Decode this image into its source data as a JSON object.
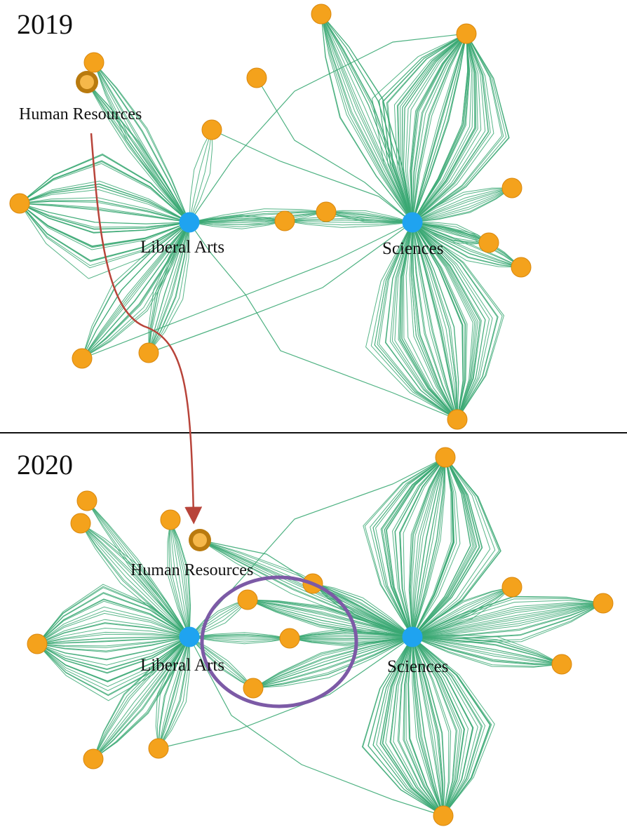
{
  "colors": {
    "edge": "#3aa873",
    "hub": "#1fa3f0",
    "node": "#f4a21c",
    "node_stroke": "#d9880e",
    "highlight_outer": "#b97a0e",
    "highlight_inner": "#f6b84a",
    "arrow": "#b8443a",
    "ellipse": "#7c5aa6",
    "divider": "#111111"
  },
  "panel_2019": {
    "year": "2019",
    "hub_left_label": "Liberal Arts",
    "hub_right_label": "Sciences",
    "highlight_label": "Human Resources"
  },
  "panel_2020": {
    "year": "2020",
    "hub_left_label": "Liberal Arts",
    "hub_right_label": "Sciences",
    "highlight_label": "Human Resources"
  }
}
